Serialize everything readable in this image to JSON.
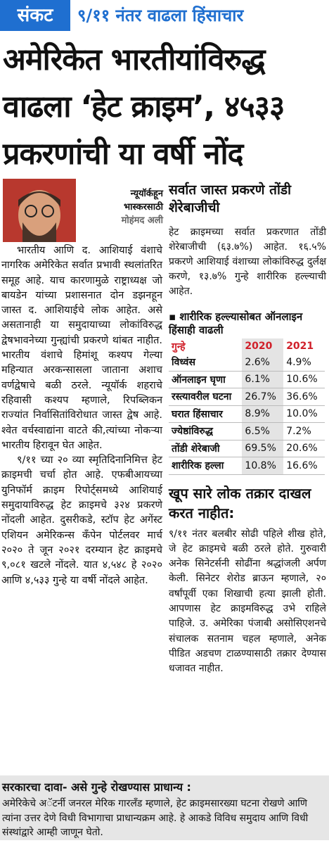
{
  "header": {
    "tag": "संकट",
    "kicker": "९/११ नंतर वाढला हिंसाचार",
    "title_lines": [
      "अमेरिकेत भारतीयांविरुद्ध",
      "वाढला ‘हेट क्राइम’, ४५३३",
      "प्रकरणांची या वर्षी नोंद"
    ]
  },
  "byline": {
    "place": "न्यूयॉर्कहून",
    "paper": "भास्करसाठी",
    "author": "मोहंमद अली"
  },
  "left": {
    "paragraphs": [
      "भारतीय आणि द. आशियाई वंशाचे नागरिक अमेरिकेत सर्वात प्रभावी स्थलांतरित समूह आहे. याच कारणामुळे राष्ट्राध्यक्ष जो बायडेन यांच्या प्रशासनात दोन डझनहून जास्त द. आशियाईचे लोक आहेत. असे असतानाही या समुदायाच्या लोकांविरुद्ध द्वेषभावनेच्या गुन्ह्यांची प्रकरणे थांबत नाहीत. भारतीय वंशाचे हिमांशू कश्यप गेल्या महिन्यात अरकन्सासला जाताना अशाच वर्णद्वेषाचे बळी ठरले. न्यूयॉर्क शहराचे रहिवासी कश्यप म्हणाले, रिपब्लिकन राज्यांत निर्वासितांविरोधात जास्त द्वेष आहे. श्वेत वर्चस्वाद्यांना वाटते की,त्यांच्या नोकऱ्या भारतीय हिरावून घेत आहेत.",
      "९/११ च्या २० व्या स्मृतिदिनानिमित्त हेट क्राइमची चर्चा होत आहे. एफबीआयच्या युनिफॉर्म क्राइम रिपोर्ट्‌समध्ये आशियाई समुदायाविरुद्ध हेट क्राइमचे ३२४ प्रकरणे नोंदली आहेत. दुसरीकडे, स्टॉप हेट अगेंस्ट एशियन अमेरिकन्स कँपेन पोर्टलवर मार्च २०२० ते जून २०२१ दरम्यान हेट क्राइमचे ९,०८१ खटले नोंदले. यात ४,५४८ हे २०२० आणि ४,५३३ गुन्हे या वर्षी नोंदले आहेत."
    ]
  },
  "right": {
    "heading1": "सर्वात जास्त प्रकरणे तोंडी शेरेबाजीची",
    "paragraph1": "हेट क्राइमच्या सर्वात प्रकरणात तोंडी शेरेबाजीची (६३.७%) आहेत. १६.५% प्रकरणे आशियाई वंशाच्या लोकांविरुद्ध दुर्लक्ष करणे, १३.७% गुन्हे शारीरिक हल्ल्याची आहेत.",
    "box_title": "▪ शारीरिक हल्ल्यासोबत ऑनलाइन हिंसाही वाढली",
    "heading2": "खूप सारे लोक तक्रार दाखल करत नाहीत:",
    "paragraph2": "९/११ नंतर बलबीर सोढी पहिले शीख होते, जे हेट क्राइमचे बळी ठरले होते. गुरुवारी अनेक सिनेटर्सनी सोढींना श्रद्धांजली अर्पण केली. सिनेटर शेरोड ब्राऊन म्हणाले, २० वर्षांपूर्वी एका शिखाची हत्या झाली होती. आपणास हेट क्राइमविरुद्ध उभे राहिले पाहिजे. उ. अमेरिका पंजाबी असोसिएशनचे संचालक सतनाम चहल म्हणाले, अनेक पीडित अडचण टाळण्यासाठी तक्रार देण्यास धजावत नाहीत."
  },
  "table": {
    "columns": [
      "गुन्हे",
      "2020",
      "2021"
    ],
    "rows": [
      [
        "विध्वंस",
        "2.6%",
        "4.9%"
      ],
      [
        "ऑनलाइन घृणा",
        "6.1%",
        "10.6%"
      ],
      [
        "रस्त्यावरील घटना",
        "26.7%",
        "36.6%"
      ],
      [
        "घरात हिंसाचार",
        "8.9%",
        "10.0%"
      ],
      [
        "ज्येष्ठांविरुद्ध",
        "6.5%",
        "7.2%"
      ],
      [
        "तोंडी शेरेबाजी",
        "69.5%",
        "20.6%"
      ],
      [
        "शारीरिक हल्ला",
        "10.8%",
        "16.6%"
      ]
    ]
  },
  "footer": {
    "title": "सरकारचा दावा- असे गुन्हे रोखण्यास प्राधान्य :",
    "text": "अमेरिकेचे अॅटर्नी जनरल मेरिक गारलँड म्हणाले, हेट क्राइमसारख्या घटना रोखणे आणि त्यांना उत्तर देणे विधी विभागाचा प्राधान्यक्रम आहे. हे आकडे विविध समुदाय आणि विधी संस्थांद्वारे आम्ही जाणून घेतो."
  }
}
